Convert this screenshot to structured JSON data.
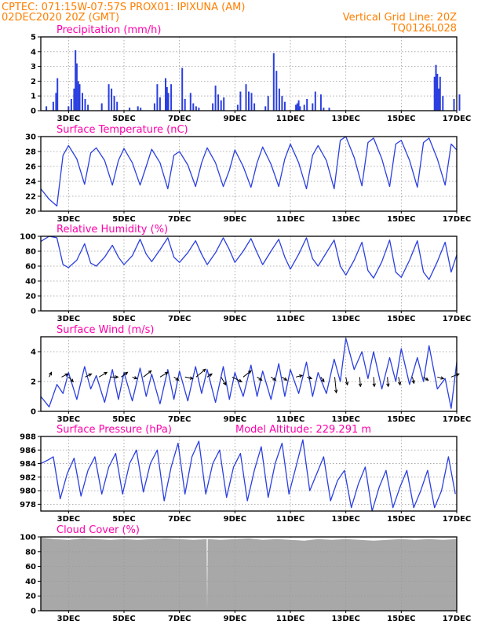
{
  "header": {
    "line1_left": "CPTEC:  071:15W-07:57S  PROX01: IPIXUNA (AM)",
    "line2_left": "02DEC2020 20Z (GMT)",
    "line2_right": "Vertical Grid Line: 20Z",
    "line3_right": "TQ0126L028"
  },
  "colors": {
    "header": "#ff7f00",
    "panel_title": "#ff00aa",
    "series": "#2b3fe0",
    "bars": "#2b3fe0",
    "cloud": "#a8a8a8",
    "wind_arrow": "#000000"
  },
  "chart_data": [
    {
      "type": "bar",
      "title": "Precipitation (mm/h)",
      "ylim": [
        0,
        5
      ],
      "yticks": [
        0,
        1,
        2,
        3,
        4,
        5
      ],
      "xlim": [
        0,
        15
      ],
      "xticks": [
        "3DEC",
        "5DEC",
        "7DEC",
        "9DEC",
        "11DEC",
        "13DEC",
        "15DEC",
        "17DEC"
      ],
      "x": [
        0.2,
        0.45,
        0.55,
        0.6,
        1.0,
        1.1,
        1.2,
        1.25,
        1.3,
        1.35,
        1.4,
        1.5,
        1.6,
        1.7,
        2.2,
        2.45,
        2.55,
        2.65,
        2.75,
        3.2,
        3.5,
        3.6,
        4.1,
        4.2,
        4.3,
        4.5,
        4.55,
        4.6,
        4.7,
        5.1,
        5.2,
        5.4,
        5.5,
        5.6,
        5.7,
        6.2,
        6.3,
        6.4,
        6.5,
        6.6,
        7.1,
        7.2,
        7.4,
        7.5,
        7.6,
        7.7,
        8.1,
        8.2,
        8.4,
        8.5,
        8.6,
        8.7,
        8.8,
        9.2,
        9.25,
        9.3,
        9.35,
        9.5,
        9.6,
        9.8,
        9.9,
        10.1,
        10.2,
        10.4,
        14.2,
        14.25,
        14.3,
        14.35,
        14.4,
        14.5,
        14.9,
        15.1
      ],
      "values": [
        0.3,
        0.6,
        1.2,
        2.2,
        0.3,
        0.8,
        1.5,
        4.1,
        3.2,
        2.0,
        1.8,
        1.2,
        0.8,
        0.4,
        0.5,
        1.8,
        1.5,
        1.0,
        0.6,
        0.2,
        0.3,
        0.2,
        0.5,
        1.8,
        0.9,
        2.2,
        1.6,
        1.2,
        1.8,
        2.9,
        0.8,
        1.2,
        0.5,
        0.3,
        0.2,
        0.5,
        1.7,
        1.1,
        0.7,
        0.9,
        0.4,
        1.3,
        1.8,
        1.3,
        1.2,
        0.5,
        0.3,
        1.0,
        3.9,
        2.7,
        1.5,
        1.0,
        0.6,
        0.4,
        0.5,
        0.7,
        0.3,
        0.4,
        0.8,
        0.5,
        1.3,
        1.1,
        0.2,
        0.2,
        2.3,
        3.1,
        2.5,
        1.5,
        2.3,
        1.0,
        0.8,
        1.1
      ]
    },
    {
      "type": "line",
      "title": "Surface Temperature (nC)",
      "ylim": [
        20,
        30
      ],
      "yticks": [
        20,
        22,
        24,
        26,
        28,
        30
      ],
      "xlim": [
        0,
        15
      ],
      "xticks": [
        "3DEC",
        "5DEC",
        "7DEC",
        "9DEC",
        "11DEC",
        "13DEC",
        "15DEC",
        "17DEC"
      ],
      "x": [
        0,
        0.3,
        0.58,
        0.8,
        1.0,
        1.3,
        1.58,
        1.8,
        2.0,
        2.3,
        2.58,
        2.8,
        3.0,
        3.3,
        3.58,
        3.8,
        4.0,
        4.3,
        4.58,
        4.8,
        5.0,
        5.3,
        5.58,
        5.8,
        6.0,
        6.3,
        6.58,
        6.8,
        7.0,
        7.3,
        7.58,
        7.8,
        8.0,
        8.3,
        8.58,
        8.8,
        9.0,
        9.3,
        9.58,
        9.8,
        10.0,
        10.3,
        10.58,
        10.8,
        11.0,
        11.3,
        11.58,
        11.8,
        12.0,
        12.3,
        12.58,
        12.8,
        13.0,
        13.3,
        13.58,
        13.8,
        14.0,
        14.3,
        14.58,
        14.8,
        15.0
      ],
      "values": [
        23.0,
        21.6,
        20.7,
        27.5,
        28.8,
        27.0,
        23.6,
        27.8,
        28.5,
        26.8,
        23.5,
        26.8,
        28.4,
        26.5,
        23.5,
        26.0,
        28.3,
        26.5,
        23.0,
        27.5,
        28.0,
        26.2,
        23.3,
        26.5,
        28.5,
        26.5,
        23.3,
        25.5,
        28.2,
        26.0,
        23.2,
        26.5,
        28.6,
        26.3,
        23.3,
        27.0,
        29.0,
        26.5,
        23.0,
        27.5,
        28.8,
        26.8,
        23.0,
        29.5,
        30.0,
        27.2,
        23.4,
        29.2,
        29.8,
        27.0,
        23.3,
        29.0,
        29.5,
        26.8,
        23.2,
        29.2,
        29.8,
        27.0,
        23.5,
        29.0,
        28.2
      ]
    },
    {
      "type": "line",
      "title": "Relative Humidity (%)",
      "ylim": [
        0,
        100
      ],
      "yticks": [
        0,
        20,
        40,
        60,
        80,
        100
      ],
      "xlim": [
        0,
        15
      ],
      "xticks": [
        "3DEC",
        "5DEC",
        "7DEC",
        "9DEC",
        "11DEC",
        "13DEC",
        "15DEC",
        "17DEC"
      ],
      "x": [
        0,
        0.3,
        0.58,
        0.8,
        1.0,
        1.3,
        1.58,
        1.8,
        2.0,
        2.3,
        2.58,
        2.8,
        3.0,
        3.3,
        3.58,
        3.8,
        4.0,
        4.3,
        4.58,
        4.8,
        5.0,
        5.3,
        5.58,
        5.8,
        6.0,
        6.3,
        6.58,
        6.8,
        7.0,
        7.3,
        7.58,
        7.8,
        8.0,
        8.3,
        8.58,
        8.8,
        9.0,
        9.3,
        9.58,
        9.8,
        10.0,
        10.3,
        10.58,
        10.8,
        11.0,
        11.3,
        11.58,
        11.8,
        12.0,
        12.3,
        12.58,
        12.8,
        13.0,
        13.3,
        13.58,
        13.8,
        14.0,
        14.3,
        14.58,
        14.8,
        15.0
      ],
      "values": [
        93,
        100,
        98,
        62,
        58,
        68,
        90,
        64,
        60,
        72,
        88,
        72,
        62,
        74,
        96,
        76,
        66,
        82,
        98,
        72,
        65,
        78,
        94,
        76,
        62,
        78,
        98,
        82,
        65,
        80,
        97,
        78,
        62,
        80,
        96,
        72,
        56,
        76,
        98,
        70,
        60,
        78,
        95,
        60,
        48,
        68,
        92,
        54,
        44,
        66,
        95,
        52,
        45,
        68,
        94,
        52,
        42,
        66,
        92,
        52,
        75
      ]
    },
    {
      "type": "line",
      "title": "Surface Wind (m/s)",
      "ylim": [
        0,
        5
      ],
      "yticks": [
        0,
        2,
        4
      ],
      "xlim": [
        0,
        15
      ],
      "xticks": [
        "3DEC",
        "5DEC",
        "7DEC",
        "9DEC",
        "11DEC",
        "13DEC",
        "15DEC",
        "17DEC"
      ],
      "x": [
        0,
        0.3,
        0.58,
        0.8,
        1.0,
        1.3,
        1.58,
        1.8,
        2.0,
        2.3,
        2.58,
        2.8,
        3.0,
        3.3,
        3.58,
        3.8,
        4.0,
        4.3,
        4.58,
        4.8,
        5.0,
        5.3,
        5.58,
        5.8,
        6.0,
        6.3,
        6.58,
        6.8,
        7.0,
        7.3,
        7.58,
        7.8,
        8.0,
        8.3,
        8.58,
        8.8,
        9.0,
        9.3,
        9.58,
        9.8,
        10.0,
        10.3,
        10.58,
        10.8,
        11.0,
        11.3,
        11.58,
        11.8,
        12.0,
        12.3,
        12.58,
        12.8,
        13.0,
        13.3,
        13.58,
        13.8,
        14.0,
        14.3,
        14.58,
        14.8,
        15.0
      ],
      "values": [
        1.0,
        0.3,
        1.8,
        1.2,
        2.6,
        0.8,
        3.0,
        1.5,
        2.4,
        0.6,
        2.8,
        0.8,
        2.6,
        0.7,
        2.9,
        1.0,
        2.5,
        0.5,
        2.8,
        0.8,
        2.7,
        0.7,
        3.0,
        1.2,
        2.8,
        0.6,
        3.0,
        0.8,
        2.6,
        1.0,
        3.1,
        1.0,
        2.7,
        0.8,
        3.2,
        1.0,
        2.8,
        1.2,
        3.3,
        1.0,
        2.6,
        1.2,
        3.5,
        2.0,
        4.9,
        2.8,
        4.0,
        2.2,
        4.0,
        1.5,
        3.6,
        2.0,
        4.2,
        1.8,
        3.6,
        2.0,
        4.4,
        1.5,
        2.2,
        0.2,
        3.3
      ],
      "wind_arrows": {
        "x": [
          0.3,
          0.75,
          1.0,
          1.6,
          2.1,
          2.5,
          2.9,
          3.3,
          3.7,
          4.3,
          4.8,
          5.2,
          5.6,
          6.0,
          6.5,
          6.9,
          7.3,
          7.8,
          8.3,
          8.7,
          9.2,
          9.6,
          10.1,
          10.6,
          11.0,
          11.5,
          12.0,
          12.5,
          12.9,
          13.4,
          13.8,
          14.3,
          14.8
        ],
        "dx": [
          3,
          8,
          6,
          8,
          10,
          10,
          8,
          6,
          10,
          10,
          6,
          10,
          12,
          6,
          6,
          12,
          10,
          6,
          6,
          6,
          8,
          6,
          4,
          2,
          2,
          1,
          1,
          1,
          2,
          2,
          6,
          8,
          10
        ],
        "dy": [
          -6,
          -4,
          6,
          -4,
          -6,
          0,
          -6,
          2,
          -8,
          -6,
          4,
          2,
          -10,
          -4,
          10,
          6,
          -8,
          4,
          4,
          4,
          -2,
          2,
          6,
          20,
          10,
          12,
          12,
          12,
          10,
          8,
          4,
          2,
          -4
        ]
      }
    },
    {
      "type": "line",
      "title": "Surface Pressure (hPa)",
      "subtitle": "Model Altitude: 229.291  m",
      "ylim": [
        977,
        988
      ],
      "yticks": [
        978,
        980,
        982,
        984,
        986,
        988
      ],
      "xlim": [
        0,
        15
      ],
      "xticks": [
        "3DEC",
        "5DEC",
        "7DEC",
        "9DEC",
        "11DEC",
        "13DEC",
        "15DEC",
        "17DEC"
      ],
      "x": [
        0,
        0.25,
        0.45,
        0.7,
        0.95,
        1.2,
        1.45,
        1.7,
        1.95,
        2.2,
        2.45,
        2.7,
        2.95,
        3.2,
        3.45,
        3.7,
        3.95,
        4.2,
        4.45,
        4.7,
        4.95,
        5.2,
        5.45,
        5.7,
        5.95,
        6.2,
        6.45,
        6.7,
        6.95,
        7.2,
        7.45,
        7.7,
        7.95,
        8.2,
        8.45,
        8.7,
        8.95,
        9.2,
        9.45,
        9.7,
        9.95,
        10.2,
        10.45,
        10.7,
        10.95,
        11.2,
        11.45,
        11.7,
        11.95,
        12.2,
        12.45,
        12.7,
        12.95,
        13.2,
        13.45,
        13.7,
        13.95,
        14.2,
        14.45,
        14.7,
        14.95
      ],
      "values": [
        984.0,
        984.5,
        985.0,
        978.8,
        982.5,
        984.8,
        979.2,
        983.0,
        985.0,
        979.5,
        983.5,
        985.5,
        979.5,
        984.0,
        986.0,
        979.8,
        984.0,
        986.0,
        978.5,
        983.5,
        987.0,
        979.5,
        985.0,
        987.3,
        979.5,
        984.0,
        986.0,
        979.0,
        983.5,
        985.5,
        978.5,
        983.0,
        986.5,
        979.0,
        984.0,
        987.0,
        979.5,
        983.5,
        987.5,
        980.0,
        982.5,
        985.0,
        978.5,
        981.5,
        983.0,
        977.5,
        981.0,
        983.5,
        977.0,
        980.5,
        983.0,
        977.5,
        980.5,
        983.0,
        977.5,
        980.0,
        983.0,
        977.5,
        980.0,
        985.0,
        979.5
      ]
    },
    {
      "type": "area",
      "title": "Cloud Cover (%)",
      "ylim": [
        0,
        100
      ],
      "yticks": [
        0,
        20,
        40,
        60,
        80,
        100
      ],
      "xlim": [
        0,
        15
      ],
      "xticks": [
        "3DEC",
        "5DEC",
        "7DEC",
        "9DEC",
        "11DEC",
        "13DEC",
        "15DEC",
        "17DEC"
      ],
      "x": [
        0,
        0.5,
        1.0,
        1.5,
        2.0,
        2.5,
        3.0,
        3.5,
        4.0,
        4.5,
        5.0,
        5.5,
        5.98,
        6.0,
        6.02,
        6.5,
        7.0,
        7.5,
        8.0,
        8.5,
        9.0,
        9.5,
        10.0,
        10.5,
        11.0,
        11.5,
        12.0,
        12.5,
        13.0,
        13.5,
        14.0,
        14.5,
        15.0
      ],
      "values": [
        99,
        97,
        96,
        98,
        97,
        96,
        97,
        96,
        97,
        98,
        97,
        96,
        97,
        0,
        97,
        96,
        97,
        98,
        96,
        97,
        96,
        95,
        97,
        96,
        97,
        96,
        95,
        96,
        97,
        96,
        97,
        96,
        97
      ]
    }
  ]
}
